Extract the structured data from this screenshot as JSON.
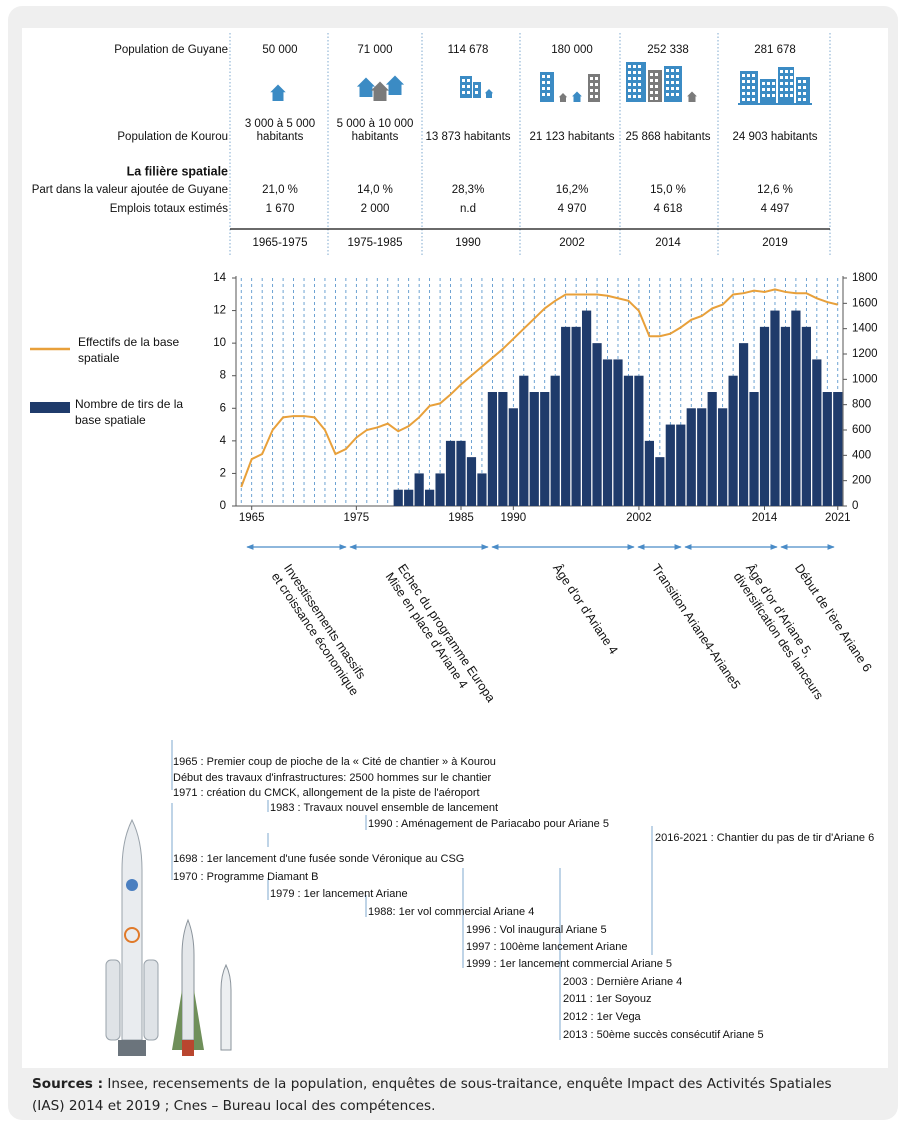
{
  "table": {
    "row_labels": {
      "guyane": "Population de Guyane",
      "kourou": "Population de Kourou",
      "section": "La filière spatiale",
      "part": "Part dans la valeur ajoutée de Guyane",
      "emplois": "Emplois totaux estimés"
    },
    "columns": [
      {
        "guyane": "50 000",
        "kourou": [
          "3 000 à 5 000",
          "habitants"
        ],
        "part": "21,0 %",
        "emplois": "1 670",
        "period": "1965-1975"
      },
      {
        "guyane": "71 000",
        "kourou": [
          "5 000 à 10 000",
          "habitants"
        ],
        "part": "14,0 %",
        "emplois": "2 000",
        "period": "1975-1985"
      },
      {
        "guyane": "114 678",
        "kourou": [
          "13 873 habitants"
        ],
        "part": "28,3%",
        "emplois": "n.d",
        "period": "1990"
      },
      {
        "guyane": "180 000",
        "kourou": [
          "21 123 habitants"
        ],
        "part": "16,2%",
        "emplois": "4 970",
        "period": "2002"
      },
      {
        "guyane": "252 338",
        "kourou": [
          "25 868 habitants"
        ],
        "part": "15,0 %",
        "emplois": "4 618",
        "period": "2014"
      },
      {
        "guyane": "281 678",
        "kourou": [
          "24 903 habitants"
        ],
        "part": "12,6 %",
        "emplois": "4 497",
        "period": "2019"
      }
    ]
  },
  "chart_data": {
    "type": "bar",
    "xlim": [
      1963.5,
      2021.5
    ],
    "xticks": [
      1965,
      1975,
      1985,
      1990,
      2002,
      2014,
      2021
    ],
    "ylim": [
      0,
      14
    ],
    "yticks": [
      0,
      2,
      4,
      6,
      8,
      10,
      12,
      14
    ],
    "y2lim": [
      0,
      1800
    ],
    "y2ticks": [
      0,
      200,
      400,
      600,
      800,
      1000,
      1200,
      1400,
      1600,
      1800
    ],
    "grid": true,
    "series": [
      {
        "name": "Nombre de tirs de la base spatiale",
        "type": "bar",
        "color": "#1f3b6b",
        "x": [
          1979,
          1980,
          1981,
          1982,
          1983,
          1984,
          1985,
          1986,
          1987,
          1988,
          1989,
          1990,
          1991,
          1992,
          1993,
          1994,
          1995,
          1996,
          1997,
          1998,
          1999,
          2000,
          2001,
          2002,
          2003,
          2004,
          2005,
          2006,
          2007,
          2008,
          2009,
          2010,
          2011,
          2012,
          2013,
          2014,
          2015,
          2016,
          2017,
          2018,
          2019,
          2020,
          2021
        ],
        "values": [
          1,
          1,
          2,
          1,
          2,
          4,
          4,
          3,
          2,
          7,
          7,
          6,
          8,
          7,
          7,
          8,
          11,
          11,
          12,
          10,
          9,
          9,
          8,
          8,
          4,
          3,
          5,
          5,
          6,
          6,
          7,
          6,
          8,
          10,
          7,
          11,
          12,
          11,
          12,
          11,
          9,
          7,
          7
        ]
      },
      {
        "name": "Effectifs de la base spatiale",
        "type": "line",
        "color": "#e8a03a",
        "axis": "y2",
        "x": [
          1964,
          1965,
          1966,
          1967,
          1968,
          1969,
          1970,
          1971,
          1972,
          1973,
          1974,
          1975,
          1976,
          1977,
          1978,
          1979,
          1980,
          1981,
          1982,
          1983,
          1984,
          1985,
          1986,
          1987,
          1988,
          1989,
          1990,
          1991,
          1992,
          1993,
          1994,
          1995,
          1996,
          1997,
          1998,
          1999,
          2000,
          2001,
          2002,
          2003,
          2004,
          2005,
          2006,
          2007,
          2008,
          2009,
          2010,
          2011,
          2012,
          2013,
          2014,
          2015,
          2016,
          2017,
          2018,
          2019,
          2020,
          2021
        ],
        "values": [
          150,
          370,
          410,
          600,
          700,
          710,
          710,
          700,
          600,
          410,
          450,
          540,
          600,
          620,
          650,
          590,
          630,
          700,
          790,
          810,
          880,
          960,
          1030,
          1100,
          1170,
          1240,
          1320,
          1400,
          1480,
          1560,
          1620,
          1670,
          1670,
          1670,
          1670,
          1660,
          1640,
          1620,
          1540,
          1340,
          1340,
          1360,
          1410,
          1470,
          1500,
          1560,
          1590,
          1670,
          1680,
          1700,
          1690,
          1710,
          1690,
          1680,
          1680,
          1640,
          1610,
          1590
        ]
      }
    ]
  },
  "periods": [
    [
      "Investissements massifs",
      "et croissance économique"
    ],
    [
      "Echec du programme Europa",
      "Mise en place d'Ariane 4"
    ],
    [
      "Âge d'or d'Ariane 4"
    ],
    [
      "Transition Ariane4-Ariane5"
    ],
    [
      "Âge d'or d'Ariane 5,",
      "diversification des lanceurs"
    ],
    [
      "Début de l'ère Ariane 6"
    ]
  ],
  "timeline": [
    "1965 : Premier coup de pioche de la « Cité de chantier » à Kourou",
    "Début des travaux d'infrastructures:  2500 hommes sur le chantier",
    "1971 : création du CMCK, allongement de la piste de l'aéroport",
    "1983 : Travaux nouvel ensemble de lancement",
    "1990 : Aménagement de Pariacabo pour Ariane 5",
    "2016-2021 : Chantier du pas de tir d'Ariane 6",
    "1698 : 1er lancement d'une fusée sonde Véronique au CSG",
    "1970 : Programme Diamant B",
    "1979 : 1er lancement Ariane",
    "1988: 1er vol commercial Ariane 4",
    "1996 : Vol inaugural Ariane 5",
    "1997 : 100ème lancement Ariane",
    "1999 : 1er lancement commercial Ariane 5",
    "2003 : Dernière Ariane 4",
    "2011 : 1er Soyouz",
    "2012 : 1er Vega",
    "2013 : 50ème succès consécutif Ariane 5"
  ],
  "sources": {
    "label": "Sources :",
    "text": "Insee, recensements de la population, enquêtes de sous-traitance, enquête Impact des Activités Spatiales (IAS) 2014 et 2019 ; Cnes – Bureau local des compétences."
  }
}
